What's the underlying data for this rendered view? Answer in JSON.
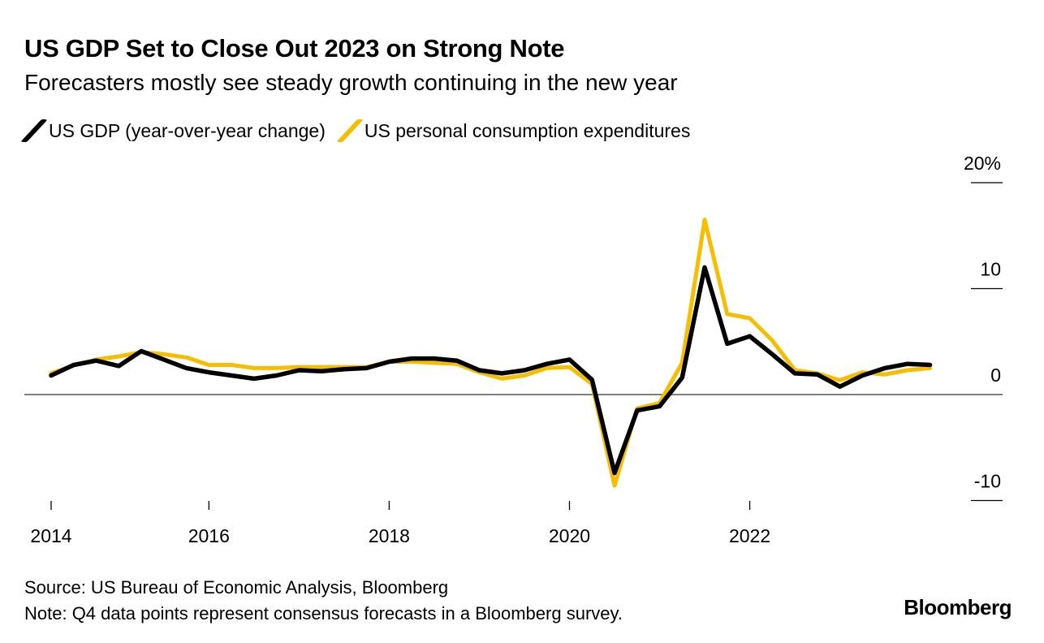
{
  "title": "US GDP Set to Close Out 2023 on Strong Note",
  "subtitle": "Forecasters mostly see steady growth continuing in the new year",
  "source": "Source: US Bureau of Economic Analysis, Bloomberg",
  "note": "Note: Q4 data points represent consensus forecasts in a Bloomberg survey.",
  "logo": "Bloomberg",
  "chart_data": {
    "type": "line",
    "x_start": "2014-Q1",
    "x_frequency": "quarterly",
    "x_ticks": [
      "2014",
      "2016",
      "2018",
      "2020",
      "2022"
    ],
    "y_ticks": [
      {
        "value": 20,
        "label": "20%"
      },
      {
        "value": 10,
        "label": "10"
      },
      {
        "value": 0,
        "label": "0"
      },
      {
        "value": -10,
        "label": "-10"
      }
    ],
    "ylim": [
      -10,
      20
    ],
    "y_axis_side": "right",
    "grid": false,
    "legend_position": "top-left",
    "series": [
      {
        "name": "US GDP (year-over-year change)",
        "color": "#000000",
        "values": [
          1.8,
          2.8,
          3.2,
          2.7,
          4.1,
          3.3,
          2.5,
          2.1,
          1.8,
          1.5,
          1.8,
          2.3,
          2.2,
          2.4,
          2.5,
          3.1,
          3.4,
          3.4,
          3.2,
          2.3,
          2.0,
          2.3,
          2.9,
          3.3,
          1.4,
          -7.4,
          -1.5,
          -1.1,
          1.6,
          12.0,
          4.8,
          5.5,
          3.8,
          2.0,
          1.9,
          0.75,
          1.8,
          2.5,
          2.9,
          2.8
        ]
      },
      {
        "name": "US personal consumption expenditures",
        "color": "#f6be00",
        "values": [
          2.0,
          2.75,
          3.3,
          3.6,
          4.0,
          3.8,
          3.5,
          2.8,
          2.8,
          2.5,
          2.5,
          2.6,
          2.6,
          2.6,
          2.6,
          3.1,
          3.1,
          3.0,
          2.9,
          2.1,
          1.5,
          1.8,
          2.5,
          2.6,
          1.0,
          -8.6,
          -1.3,
          -0.8,
          3.0,
          16.5,
          7.6,
          7.2,
          5.1,
          2.3,
          2.0,
          1.35,
          2.1,
          1.9,
          2.3,
          2.5
        ]
      }
    ]
  }
}
